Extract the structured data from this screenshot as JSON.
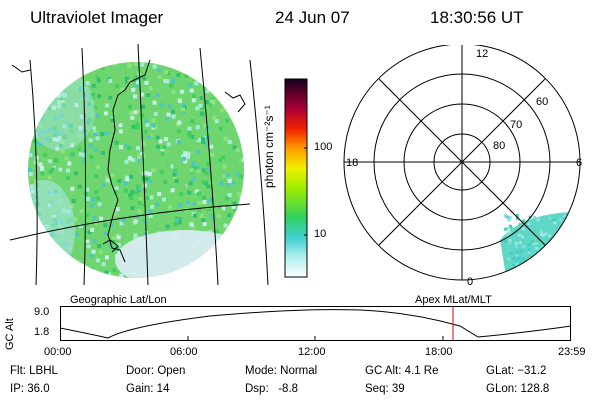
{
  "header": {
    "title": "Ultraviolet Imager",
    "date": "24 Jun 07",
    "time": "18:30:56 UT"
  },
  "colorbar": {
    "unit": "photon cm⁻²s⁻¹",
    "ticks": [
      "100",
      "10"
    ]
  },
  "polar": {
    "mlt_labels": {
      "top": "12",
      "left": "18",
      "right": "6",
      "bottom": "0"
    },
    "lat_labels": [
      "60",
      "70",
      "80"
    ]
  },
  "labels": {
    "geo": "Geographic Lat/Lon",
    "apex": "Apex MLat/MLT"
  },
  "orbit": {
    "axis_label": "GC Alt",
    "y_ticks": [
      "9.0",
      "1.8"
    ],
    "x_ticks": [
      "00:00",
      "06:00",
      "12:00",
      "18:00",
      "23:59"
    ],
    "marker_time": "18:30"
  },
  "info": {
    "filter": "Flt: LBHL",
    "ip": "IP: 36.0",
    "door": "Door: Open",
    "gain": "Gain: 14",
    "mode": "Mode: Normal",
    "dsp": "Dsp:   -8.8",
    "gc_alt": "GC Alt: 4.1 Re",
    "seq": "Seq: 39",
    "glat": "GLat: −31.2",
    "glon": "GLon: 128.8"
  }
}
